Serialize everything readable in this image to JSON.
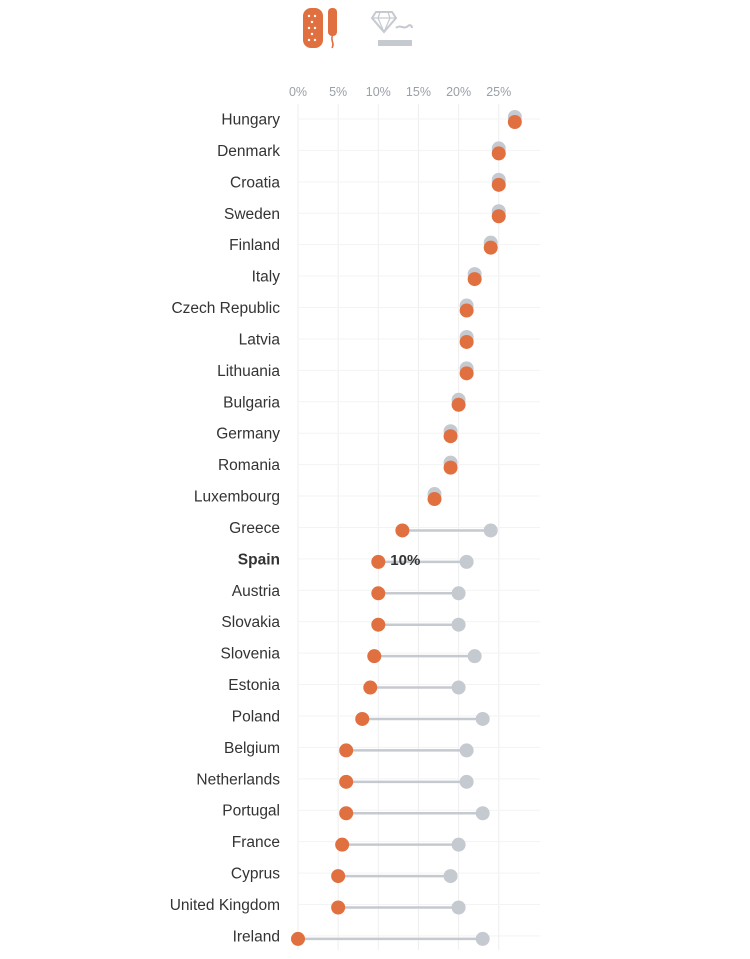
{
  "legend": [
    {
      "name": "pad-tampon-icon",
      "color": "#e07040"
    },
    {
      "name": "diamond-cigarette-icon",
      "color": "#c5c9d0"
    }
  ],
  "chart_data": {
    "type": "dot",
    "x_ticks": [
      "0%",
      "5%",
      "10%",
      "15%",
      "20%",
      "25%"
    ],
    "x_tick_values": [
      0,
      5,
      10,
      15,
      20,
      25
    ],
    "xlim": [
      0,
      30
    ],
    "grid": true,
    "colors": {
      "tampon_tax": "#e07040",
      "luxury_tax": "#c5c9d0",
      "connector": "#c5c9d0",
      "grid": "#eeeeee",
      "tick": "#9aa0a8",
      "label": "#333333"
    },
    "highlight": {
      "country": "Spain",
      "label": "10%"
    },
    "countries": [
      "Hungary",
      "Denmark",
      "Croatia",
      "Sweden",
      "Finland",
      "Italy",
      "Czech Republic",
      "Latvia",
      "Lithuania",
      "Bulgaria",
      "Germany",
      "Romania",
      "Luxembourg",
      "Greece",
      "Spain",
      "Austria",
      "Slovakia",
      "Slovenia",
      "Estonia",
      "Poland",
      "Belgium",
      "Netherlands",
      "Portugal",
      "France",
      "Cyprus",
      "United Kingdom",
      "Ireland"
    ],
    "series": [
      {
        "key": "tampon_tax",
        "values": [
          27,
          25,
          25,
          25,
          24,
          22,
          21,
          21,
          21,
          20,
          19,
          19,
          17,
          13,
          10,
          10,
          10,
          9.5,
          9,
          8,
          6,
          6,
          6,
          5.5,
          5,
          5,
          0
        ]
      },
      {
        "key": "luxury_tax",
        "values": [
          27,
          25,
          25,
          25,
          24,
          22,
          21,
          21,
          21,
          20,
          19,
          19,
          17,
          24,
          21,
          20,
          20,
          22,
          20,
          23,
          21,
          21,
          23,
          20,
          19,
          20,
          23
        ]
      }
    ]
  }
}
